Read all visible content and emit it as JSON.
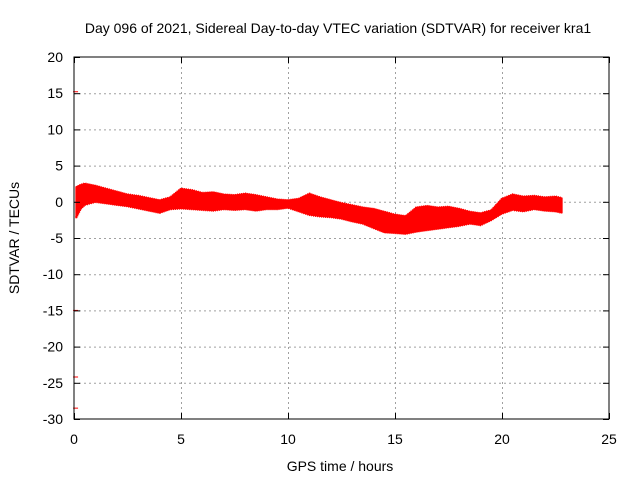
{
  "chart_data": {
    "type": "scatter",
    "title": "Day 096 of 2021, Sidereal Day-to-day VTEC variation (SDTVAR) for receiver kra1",
    "xlabel": "GPS time / hours",
    "ylabel": "SDTVAR / TECUs",
    "xlim": [
      0,
      25
    ],
    "ylim": [
      -30,
      20
    ],
    "xticks": [
      0,
      5,
      10,
      15,
      20,
      25
    ],
    "yticks": [
      20,
      15,
      10,
      5,
      0,
      -5,
      -10,
      -15,
      -20,
      -25,
      -30
    ],
    "grid": true,
    "series": [
      {
        "name": "SDTVAR",
        "color": "#ff0000",
        "band": {
          "x": [
            0.1,
            0.3,
            0.5,
            1.0,
            1.5,
            2.0,
            2.5,
            3.0,
            3.5,
            4.0,
            4.5,
            5.0,
            5.5,
            6.0,
            6.5,
            7.0,
            7.5,
            8.0,
            8.5,
            9.0,
            9.5,
            10.0,
            10.5,
            11.0,
            11.5,
            12.0,
            12.5,
            13.0,
            13.5,
            14.0,
            14.5,
            15.0,
            15.5,
            16.0,
            16.5,
            17.0,
            17.5,
            18.0,
            18.5,
            19.0,
            19.5,
            20.0,
            20.5,
            21.0,
            21.5,
            22.0,
            22.5,
            22.8
          ],
          "upper": [
            2.0,
            2.3,
            2.5,
            2.2,
            1.8,
            1.4,
            1.0,
            0.8,
            0.5,
            0.2,
            0.6,
            1.8,
            1.6,
            1.2,
            1.3,
            1.0,
            0.9,
            1.1,
            0.9,
            0.6,
            0.3,
            0.2,
            0.4,
            1.1,
            0.6,
            0.2,
            -0.2,
            -0.5,
            -0.8,
            -1.0,
            -1.4,
            -1.8,
            -2.0,
            -0.8,
            -0.6,
            -0.8,
            -0.7,
            -1.0,
            -1.4,
            -1.6,
            -1.2,
            0.4,
            1.0,
            0.7,
            0.8,
            0.6,
            0.7,
            0.5
          ],
          "lower": [
            -2.2,
            -1.0,
            -0.4,
            0.0,
            -0.2,
            -0.4,
            -0.6,
            -0.9,
            -1.2,
            -1.5,
            -1.0,
            -0.9,
            -1.0,
            -1.1,
            -1.2,
            -1.0,
            -1.1,
            -1.0,
            -1.2,
            -1.0,
            -1.0,
            -0.8,
            -1.3,
            -1.8,
            -2.0,
            -2.1,
            -2.3,
            -2.7,
            -3.0,
            -3.6,
            -4.2,
            -4.3,
            -4.4,
            -4.1,
            -3.9,
            -3.7,
            -3.5,
            -3.3,
            -3.0,
            -3.2,
            -2.5,
            -1.6,
            -1.1,
            -1.3,
            -1.0,
            -1.2,
            -1.3,
            -1.5
          ]
        }
      }
    ],
    "outliers": [
      {
        "x": 0.05,
        "y": 15.2
      },
      {
        "x": 0.05,
        "y": -15.0
      },
      {
        "x": 0.05,
        "y": -24.2
      },
      {
        "x": 0.05,
        "y": -28.5
      }
    ]
  }
}
